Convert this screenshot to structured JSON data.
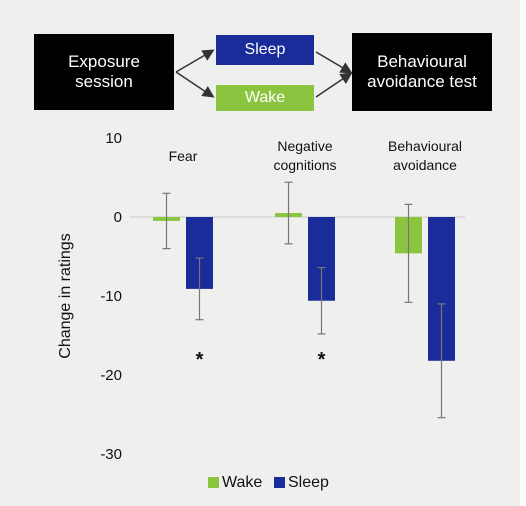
{
  "flow": {
    "exposure_label": "Exposure session",
    "sleep_label": "Sleep",
    "wake_label": "Wake",
    "test_label": "Behavioural avoidance test",
    "colors": {
      "box": "#000000",
      "sleep": "#1a2b9a",
      "wake": "#8bc53f",
      "arrow": "#333333"
    }
  },
  "chart_data": {
    "type": "bar",
    "ylabel": "Change in ratings",
    "ylim": [
      -30,
      10
    ],
    "yticks": [
      10,
      0,
      -10,
      -20,
      -30
    ],
    "grid": false,
    "legend_position": "bottom",
    "categories": [
      {
        "lines": [
          "Fear"
        ]
      },
      {
        "lines": [
          "Negative",
          "cognitions"
        ]
      },
      {
        "lines": [
          "Behavioural",
          "avoidance"
        ]
      }
    ],
    "series": [
      {
        "name": "Wake",
        "color": "#8bc53f",
        "values": [
          -0.5,
          0.5,
          -4.6
        ],
        "error": [
          3.5,
          3.9,
          6.2
        ]
      },
      {
        "name": "Sleep",
        "color": "#1a2b9a",
        "values": [
          -9.1,
          -10.6,
          -18.2
        ],
        "error": [
          3.9,
          4.2,
          7.2
        ]
      }
    ],
    "annotations": [
      {
        "category": 0,
        "series": 1,
        "y": -18,
        "text": "*"
      },
      {
        "category": 1,
        "series": 1,
        "y": -18,
        "text": "*"
      }
    ]
  }
}
